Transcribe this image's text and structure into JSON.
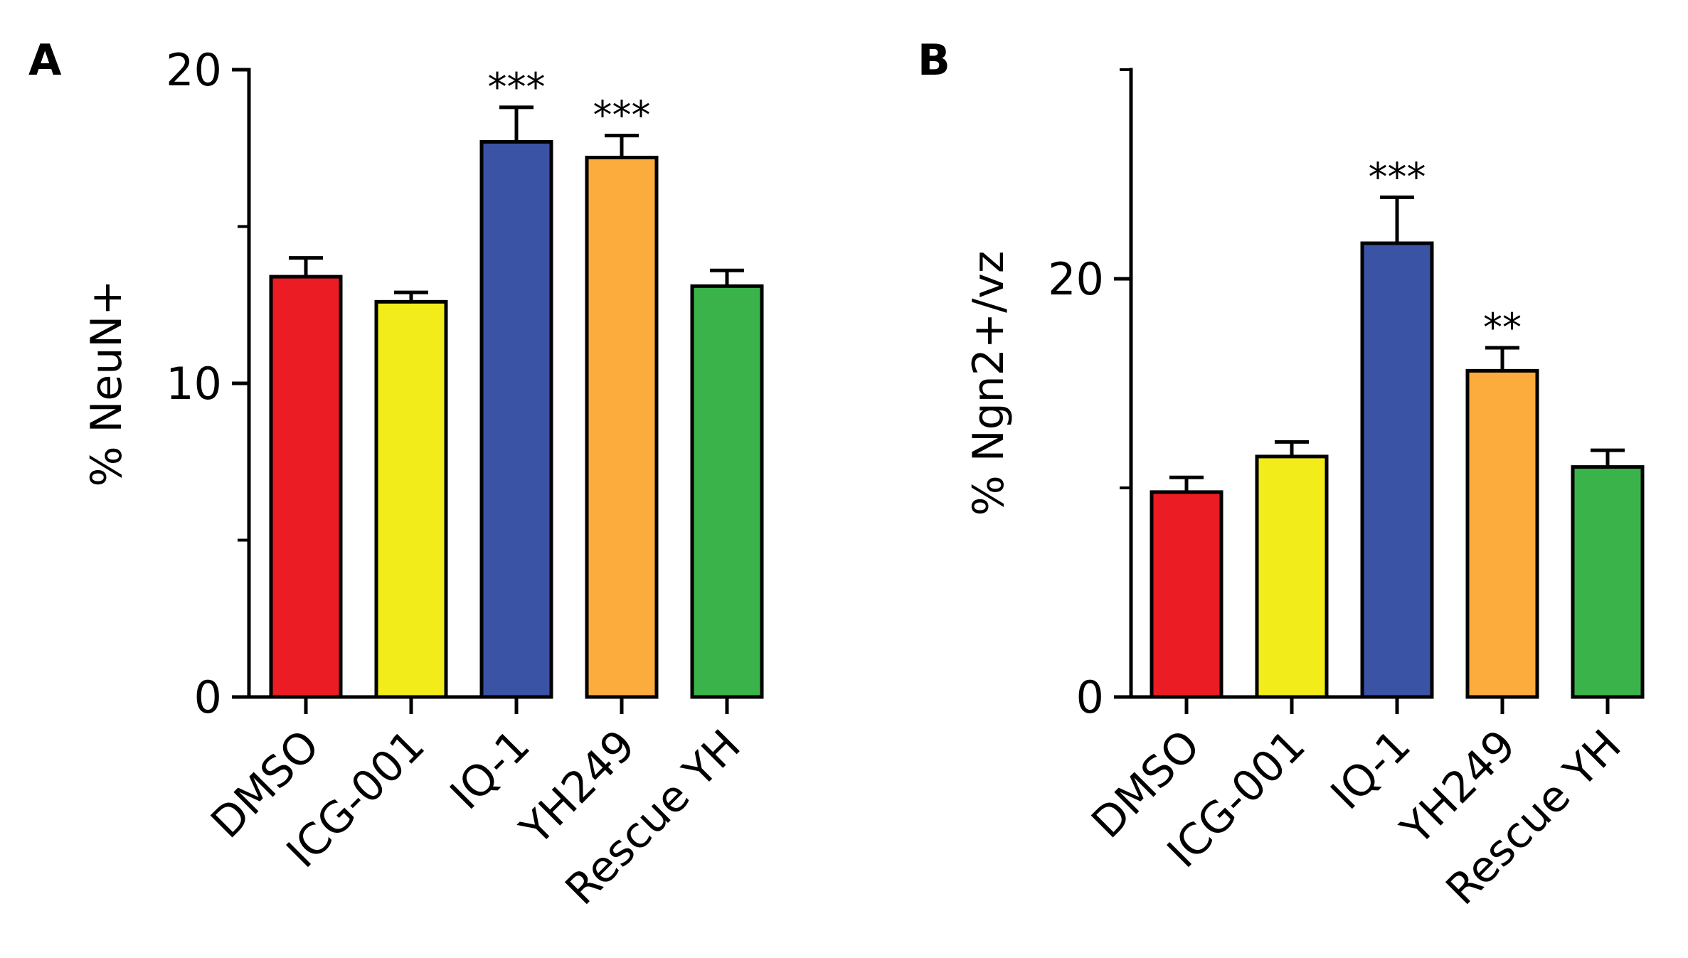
{
  "chart_data": [
    {
      "type": "bar",
      "panel_label": "A",
      "categories": [
        "DMSO",
        "ICG-001",
        "IQ-1",
        "YH249",
        "Rescue YH"
      ],
      "values": [
        13.4,
        12.6,
        17.7,
        17.2,
        13.1
      ],
      "errors": [
        0.6,
        0.3,
        1.1,
        0.7,
        0.5
      ],
      "significance": [
        "",
        "",
        "***",
        "***",
        ""
      ],
      "colors": [
        "#ec1c24",
        "#f2ec1b",
        "#3a53a4",
        "#fbac3c",
        "#3ab44a"
      ],
      "ylabel": "% NeuN+",
      "ylim": [
        0,
        20
      ],
      "yticks": [
        0,
        10,
        20
      ],
      "yminor_ticks": [
        5,
        15
      ],
      "title": "",
      "xlabel": "",
      "grid": false,
      "legend": "none"
    },
    {
      "type": "bar",
      "panel_label": "B",
      "categories": [
        "DMSO",
        "ICG-001",
        "IQ-1",
        "YH249",
        "Rescue YH"
      ],
      "values": [
        9.8,
        11.5,
        21.7,
        15.6,
        11.0
      ],
      "errors": [
        0.7,
        0.7,
        2.2,
        1.1,
        0.8
      ],
      "significance": [
        "",
        "",
        "***",
        "**",
        ""
      ],
      "colors": [
        "#ec1c24",
        "#f2ec1b",
        "#3a53a4",
        "#fbac3c",
        "#3ab44a"
      ],
      "ylabel": "% Ngn2+/vz",
      "ylim": [
        0,
        30
      ],
      "yticks": [
        0,
        20
      ],
      "yminor_ticks": [
        10,
        30
      ],
      "title": "",
      "xlabel": "",
      "grid": false,
      "legend": "none"
    }
  ]
}
